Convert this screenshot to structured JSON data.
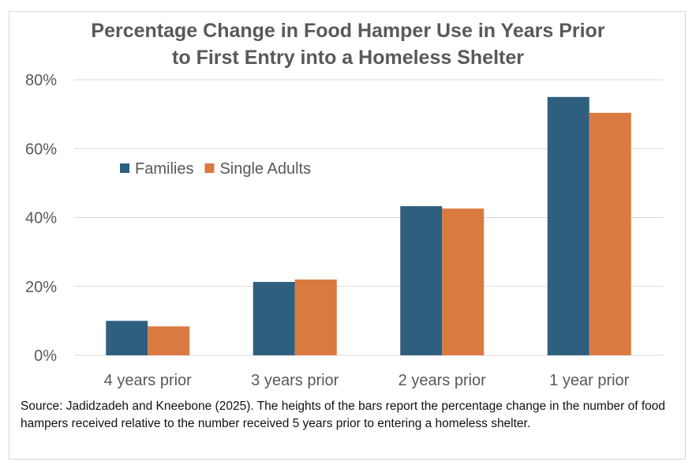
{
  "chart_data": {
    "type": "bar",
    "title_lines": [
      "Percentage Change in Food Hamper Use in Years Prior",
      "to First Entry into a Homeless Shelter"
    ],
    "categories": [
      "4 years prior",
      "3 years prior",
      "2 years prior",
      "1 year prior"
    ],
    "series": [
      {
        "name": "Families",
        "values": [
          10.0,
          21.3,
          43.3,
          75.0
        ],
        "color": "#2e5f7f"
      },
      {
        "name": "Single Adults",
        "values": [
          8.4,
          22.0,
          42.6,
          70.4
        ],
        "color": "#d97a40"
      }
    ],
    "ylim": [
      0,
      80
    ],
    "yticks": [
      0,
      20,
      40,
      60,
      80
    ],
    "ytick_labels": [
      "0%",
      "20%",
      "40%",
      "60%",
      "80%"
    ],
    "grid": true,
    "legend_position": "top-left",
    "xlabel": "",
    "ylabel": ""
  },
  "source_note": "Source: Jadidzadeh and Kneebone (2025). The heights of the bars report the percentage change in the number of food hampers received relative to the number received 5 years prior to entering a homeless shelter.",
  "colors": {
    "gridline": "#d9d9d9",
    "axis_text": "#595959",
    "title_text": "#595959"
  }
}
